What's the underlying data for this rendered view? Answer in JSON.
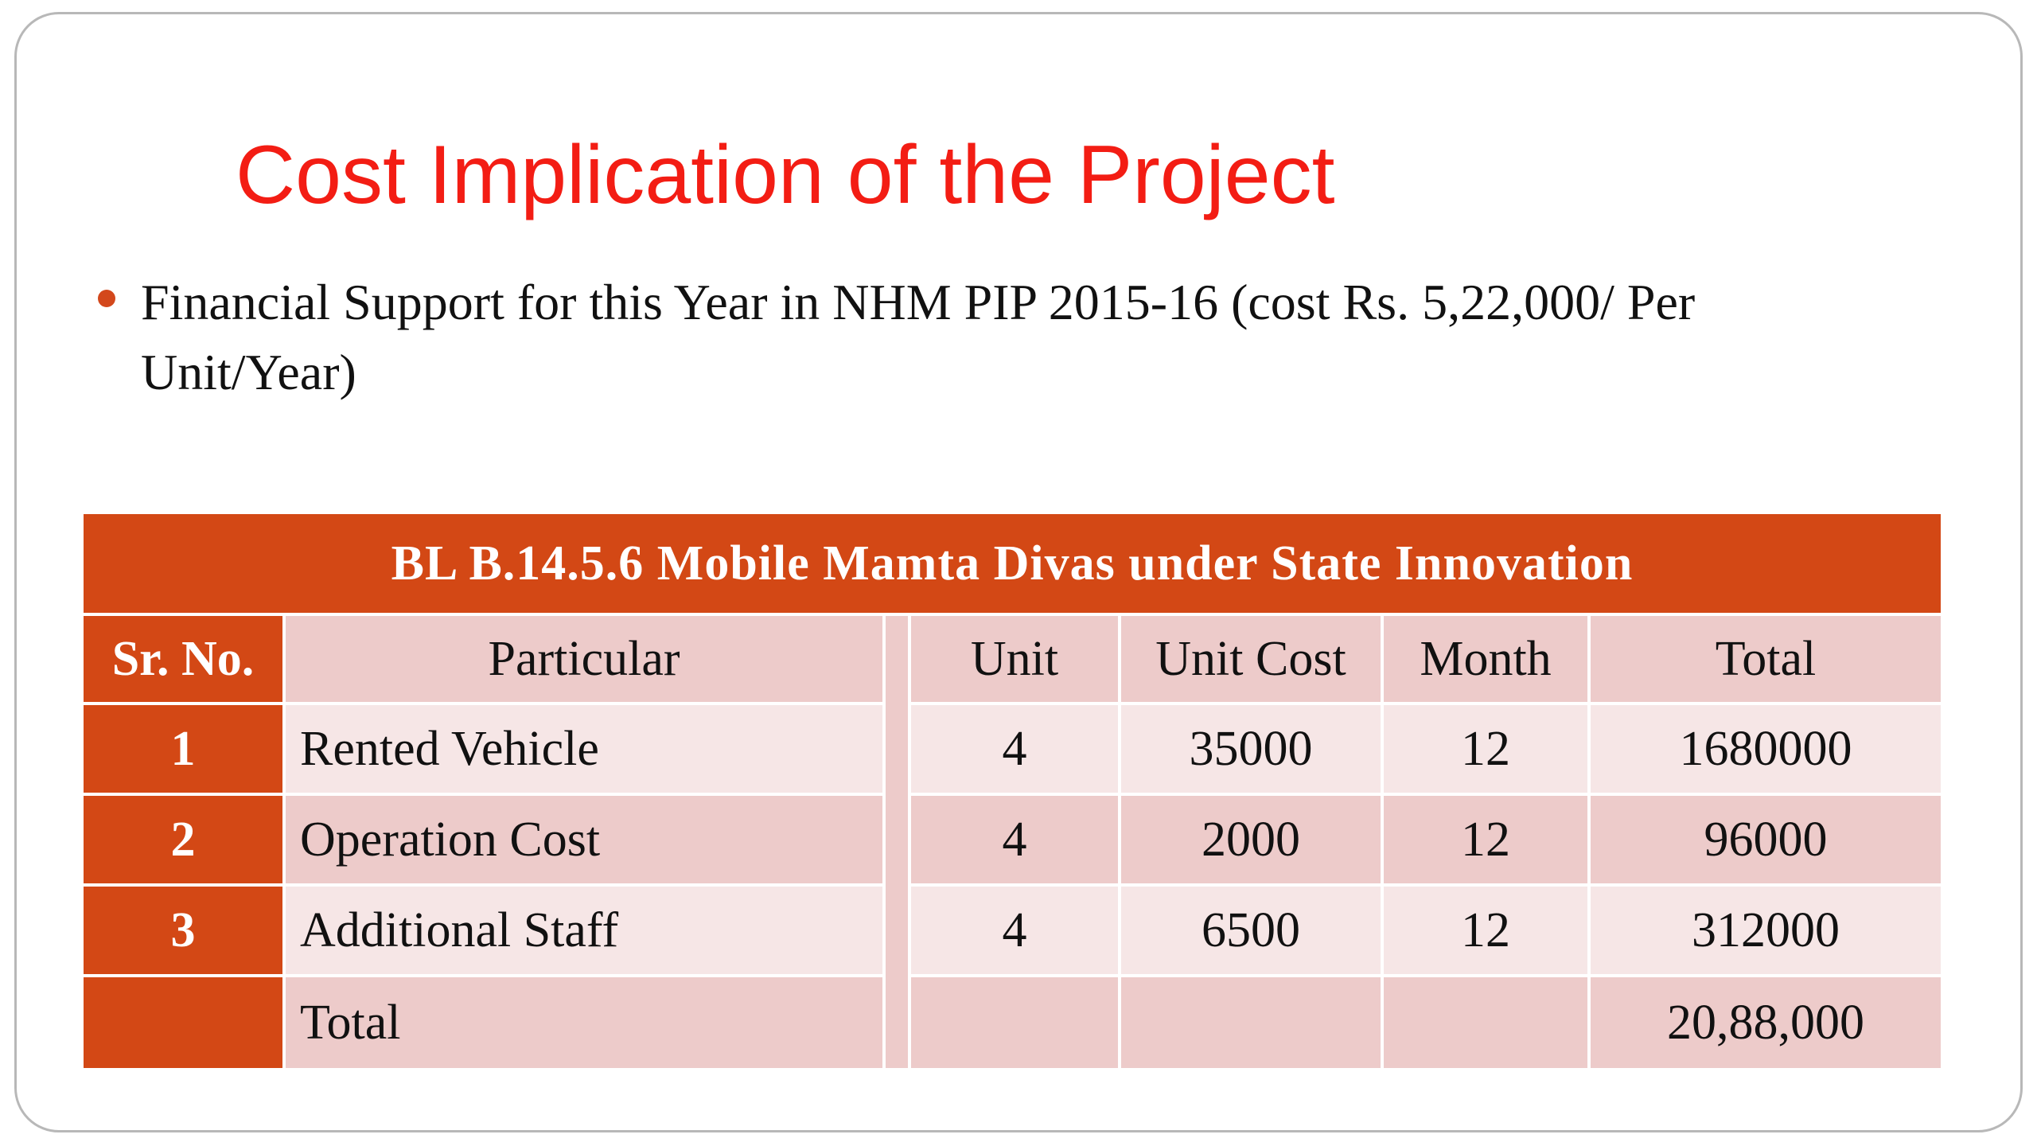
{
  "slide": {
    "title": "Cost Implication of the Project",
    "bullet": "Financial Support for this Year in NHM PIP 2015-16 (cost Rs. 5,22,000/ Per Unit/Year)"
  },
  "table": {
    "caption": "BL B.14.5.6 Mobile Mamta Divas under State Innovation",
    "headers": {
      "sr_no": "Sr. No.",
      "particular": "Particular",
      "unit": "Unit",
      "unit_cost": "Unit Cost",
      "month": "Month",
      "total": "Total"
    },
    "rows": [
      {
        "sr_no": "1",
        "particular": "Rented Vehicle",
        "unit": "4",
        "unit_cost": "35000",
        "month": "12",
        "total": "1680000"
      },
      {
        "sr_no": "2",
        "particular": "Operation Cost",
        "unit": "4",
        "unit_cost": "2000",
        "month": "12",
        "total": "96000"
      },
      {
        "sr_no": "3",
        "particular": "Additional Staff",
        "unit": "4",
        "unit_cost": "6500",
        "month": "12",
        "total": "312000"
      }
    ],
    "total_row": {
      "sr_no": "",
      "particular": "Total",
      "unit": "",
      "unit_cost": "",
      "month": "",
      "total": "20,88,000"
    }
  },
  "colors": {
    "title": "#f31d14",
    "accent": "#d34815",
    "row_dark": "#edcbca",
    "row_light": "#f6e6e6"
  }
}
